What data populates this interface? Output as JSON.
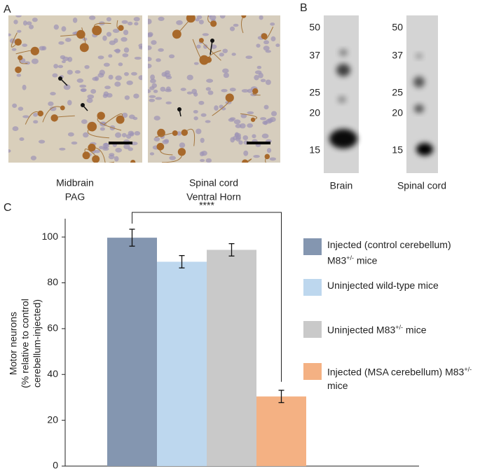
{
  "panel_a": {
    "label": "A",
    "images": [
      {
        "caption": [
          "Midbrain",
          "PAG"
        ]
      },
      {
        "caption": [
          "Spinal cord",
          "Ventral Horn"
        ]
      }
    ]
  },
  "panel_b": {
    "label": "B",
    "lanes": [
      {
        "caption": "Brain",
        "markers": [
          "50",
          "37",
          "25",
          "20",
          "15"
        ]
      },
      {
        "caption": "Spinal cord",
        "markers": [
          "50",
          "37",
          "25",
          "20",
          "15"
        ]
      }
    ]
  },
  "chart_data": {
    "type": "bar",
    "panel_label": "C",
    "ylabel": [
      "Motor neurons",
      "(% relative to control",
      "cerebellum-injected)"
    ],
    "ylim": [
      0,
      108
    ],
    "yticks": [
      0,
      20,
      40,
      60,
      80,
      100
    ],
    "series": [
      {
        "name": "Injected (control cerebellum) M83+/- mice",
        "color": "#8496b0",
        "values": [
          99.7
        ],
        "errors": [
          3.7
        ]
      },
      {
        "name": "Uninjected wild-type mice",
        "color": "#bdd7ee",
        "values": [
          89.2
        ],
        "errors": [
          2.7
        ]
      },
      {
        "name": "Uninjected M83+/- mice",
        "color": "#c9c9c9",
        "values": [
          94.4
        ],
        "errors": [
          2.7
        ]
      },
      {
        "name": "Injected (MSA cerebellum) M83+/- mice",
        "color": "#f4b183",
        "values": [
          30.4
        ],
        "errors": [
          2.7
        ]
      }
    ],
    "annotations": [
      {
        "text": "****",
        "between": [
          0,
          3
        ]
      }
    ]
  }
}
